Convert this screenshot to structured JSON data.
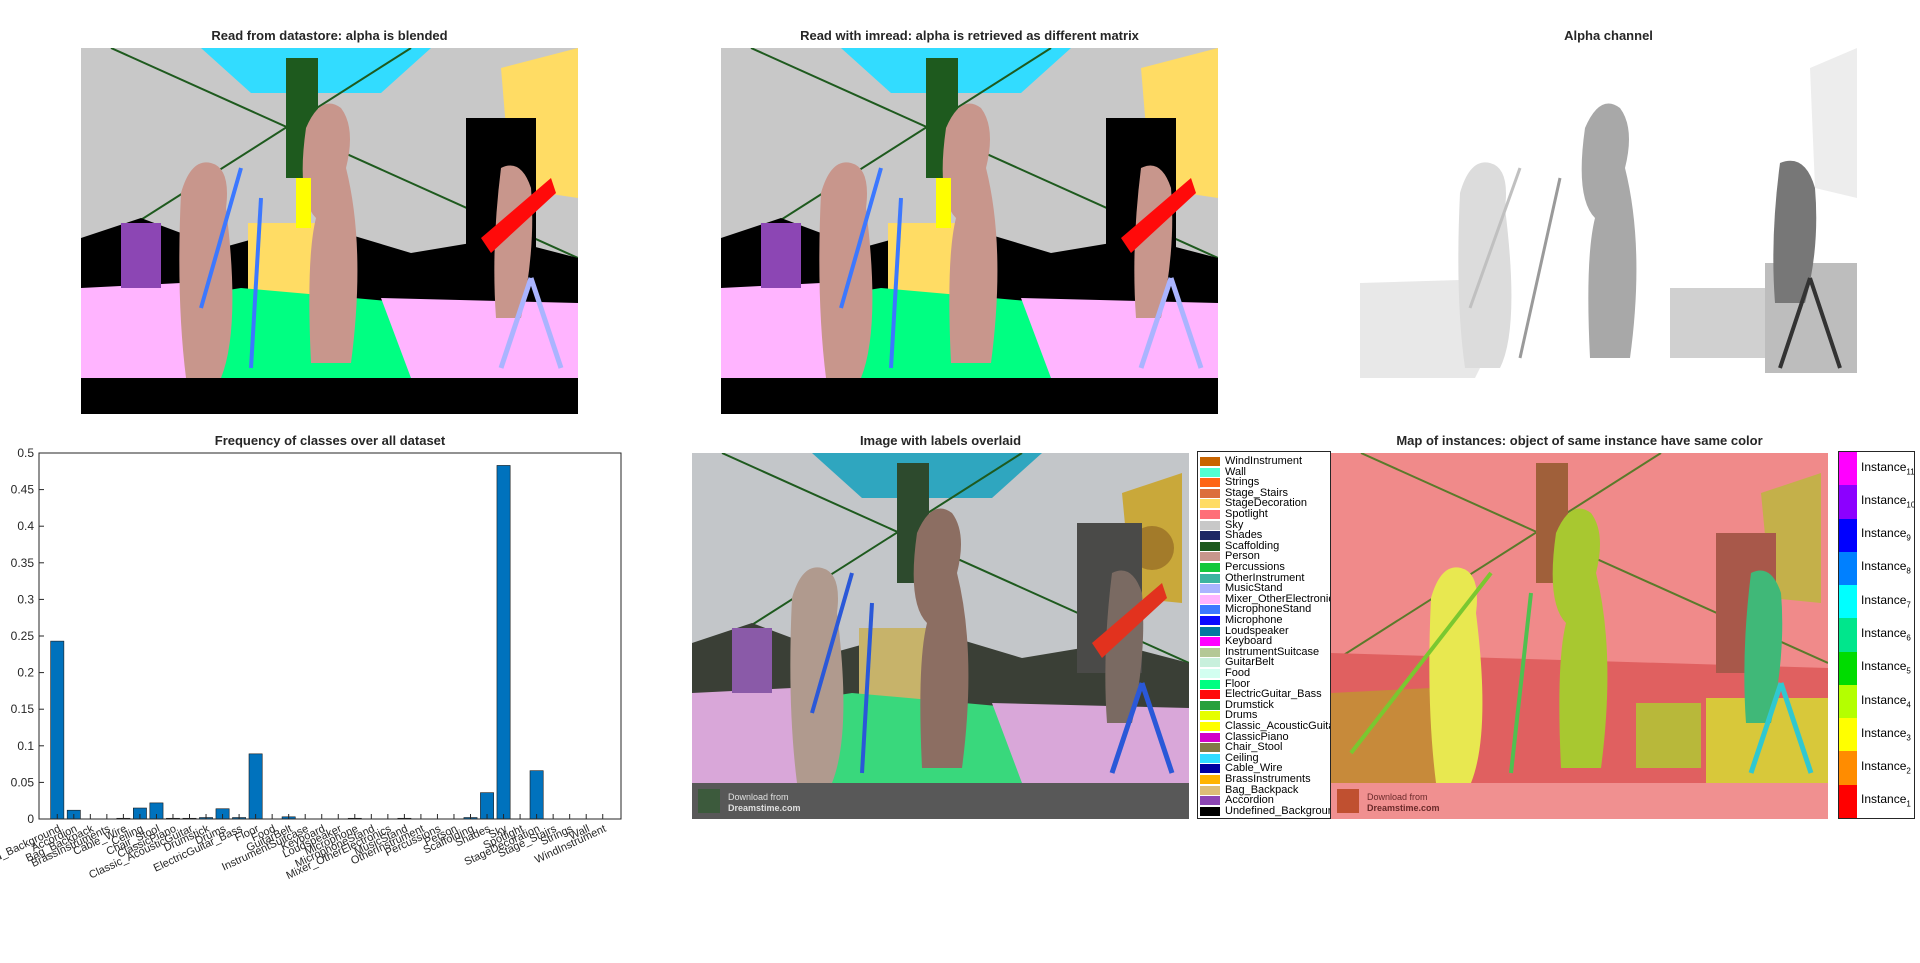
{
  "panels": {
    "datastore_title": "Read from datastore: alpha is blended",
    "imread_title": "Read with imread: alpha is retrieved as different matrix",
    "alpha_title": "Alpha channel",
    "overlay_title": "Image with labels overlaid",
    "instances_title": "Map of instances: object of same instance have same color"
  },
  "watermark": {
    "line1": "Download from",
    "line2": "Dreamstime.com"
  },
  "chart_data": {
    "type": "bar",
    "title": "Frequency of classes over all dataset",
    "xlabel": "",
    "ylabel": "",
    "ylim": [
      0,
      0.5
    ],
    "yticks": [
      "0",
      "0.05",
      "0.1",
      "0.15",
      "0.2",
      "0.25",
      "0.3",
      "0.35",
      "0.4",
      "0.45",
      "0.5"
    ],
    "color": "#0072BD",
    "categories": [
      "Undefined_Background",
      "Accordion",
      "Bag_Backpack",
      "BrassInstruments",
      "Cable_Wire",
      "Ceiling",
      "Chair_Stool",
      "ClassicPiano",
      "Classic_AcousticGuitar",
      "Drumstick",
      "Drums",
      "ElectricGuitar_Bass",
      "Floor",
      "Food",
      "GuitarBelt",
      "InstrumentSuitcase",
      "Keyboard",
      "Loudspeaker",
      "Microphone",
      "MicrophoneStand",
      "Mixer_OtherElectronics",
      "MusicStand",
      "OtherInstrument",
      "Percussions",
      "Person",
      "Scaffolding",
      "Shades",
      "Sky",
      "Spotlight",
      "StageDecoration",
      "Stage_Stairs",
      "Strings",
      "Wall",
      "WindInstrument"
    ],
    "tick_labels": [
      "Undefined_Background",
      "Accordion",
      "Bag_Backpack",
      "BrassInstruments",
      "Cable_Wire",
      "Ceiling",
      "Chair_Stool",
      "ClassicPiano",
      "Classic_AcousticGuitar",
      "Drumstick",
      "Drums",
      "ElectricGuitar_Bass",
      "Floor",
      "Food",
      "GuitarBelt",
      "InstrumentSuitcase",
      "Keyboard",
      "Loudspeaker",
      "Microphone",
      "MicrophoneStand",
      "Mixer_OtherElectronics",
      "MusicStand",
      "OtherInstrument",
      "Percussions",
      "Person",
      "Scaffolding",
      "Shades",
      "Sky",
      "Spotlight",
      "StageDecoration",
      "Stage_Stairs",
      "Strings",
      "Wall",
      "WindInstrument"
    ],
    "values": [
      0.243,
      0.012,
      0.0,
      0.0,
      0.001,
      0.015,
      0.022,
      0.001,
      0.001,
      0.002,
      0.014,
      0.002,
      0.089,
      0.0,
      0.003,
      0.0,
      0.0,
      0.0,
      0.001,
      0.0,
      0.0,
      0.001,
      0.0,
      0.0,
      0.0,
      0.002,
      0.036,
      0.483,
      0.0,
      0.066,
      0.0,
      0.0,
      0.0,
      0.0
    ]
  },
  "legend": {
    "items": [
      {
        "label": "WindInstrument",
        "color": "#c86400"
      },
      {
        "label": "Wall",
        "color": "#50ffd2"
      },
      {
        "label": "Strings",
        "color": "#ff6414"
      },
      {
        "label": "Stage_Stairs",
        "color": "#dc6e3c"
      },
      {
        "label": "StageDecoration",
        "color": "#ffdc64"
      },
      {
        "label": "Spotlight",
        "color": "#ff6e78"
      },
      {
        "label": "Sky",
        "color": "#c8c8c8"
      },
      {
        "label": "Shades",
        "color": "#1e2864"
      },
      {
        "label": "Scaffolding",
        "color": "#1e5a1e"
      },
      {
        "label": "Person",
        "color": "#c8968c"
      },
      {
        "label": "Percussions",
        "color": "#14c83c"
      },
      {
        "label": "OtherInstrument",
        "color": "#3cb4a0"
      },
      {
        "label": "MusicStand",
        "color": "#aab4ff"
      },
      {
        "label": "Mixer_OtherElectronics",
        "color": "#ffb4ff"
      },
      {
        "label": "MicrophoneStand",
        "color": "#3c78ff"
      },
      {
        "label": "Microphone",
        "color": "#0a0aff"
      },
      {
        "label": "Loudspeaker",
        "color": "#0078a0"
      },
      {
        "label": "Keyboard",
        "color": "#ff00ff"
      },
      {
        "label": "InstrumentSuitcase",
        "color": "#b4c896"
      },
      {
        "label": "GuitarBelt",
        "color": "#c8f0dc"
      },
      {
        "label": "Food",
        "color": "#d2fff0"
      },
      {
        "label": "Floor",
        "color": "#00ff82"
      },
      {
        "label": "ElectricGuitar_Bass",
        "color": "#ff0a0a"
      },
      {
        "label": "Drumstick",
        "color": "#28a03c"
      },
      {
        "label": "Drums",
        "color": "#e6ff00"
      },
      {
        "label": "Classic_AcousticGuitar",
        "color": "#ffff00"
      },
      {
        "label": "ClassicPiano",
        "color": "#d200c8"
      },
      {
        "label": "Chair_Stool",
        "color": "#827846"
      },
      {
        "label": "Ceiling",
        "color": "#32dcff"
      },
      {
        "label": "Cable_Wire",
        "color": "#0000a0"
      },
      {
        "label": "BrassInstruments",
        "color": "#ffb400"
      },
      {
        "label": "Bag_Backpack",
        "color": "#dcbe78"
      },
      {
        "label": "Accordion",
        "color": "#8c46b4"
      },
      {
        "label": "Undefined_Background",
        "color": "#000000"
      }
    ]
  },
  "instance_legend": {
    "items": [
      {
        "label": "Instance",
        "sub": "11",
        "color": "#ff00ff"
      },
      {
        "label": "Instance",
        "sub": "10",
        "color": "#8c00ff"
      },
      {
        "label": "Instance",
        "sub": "9",
        "color": "#0000ff"
      },
      {
        "label": "Instance",
        "sub": "8",
        "color": "#0080ff"
      },
      {
        "label": "Instance",
        "sub": "7",
        "color": "#00ffff"
      },
      {
        "label": "Instance",
        "sub": "6",
        "color": "#00e68c"
      },
      {
        "label": "Instance",
        "sub": "5",
        "color": "#00dc00"
      },
      {
        "label": "Instance",
        "sub": "4",
        "color": "#b4ff00"
      },
      {
        "label": "Instance",
        "sub": "3",
        "color": "#ffff00"
      },
      {
        "label": "Instance",
        "sub": "2",
        "color": "#ff8c00"
      },
      {
        "label": "Instance",
        "sub": "1",
        "color": "#ff0000"
      }
    ]
  }
}
